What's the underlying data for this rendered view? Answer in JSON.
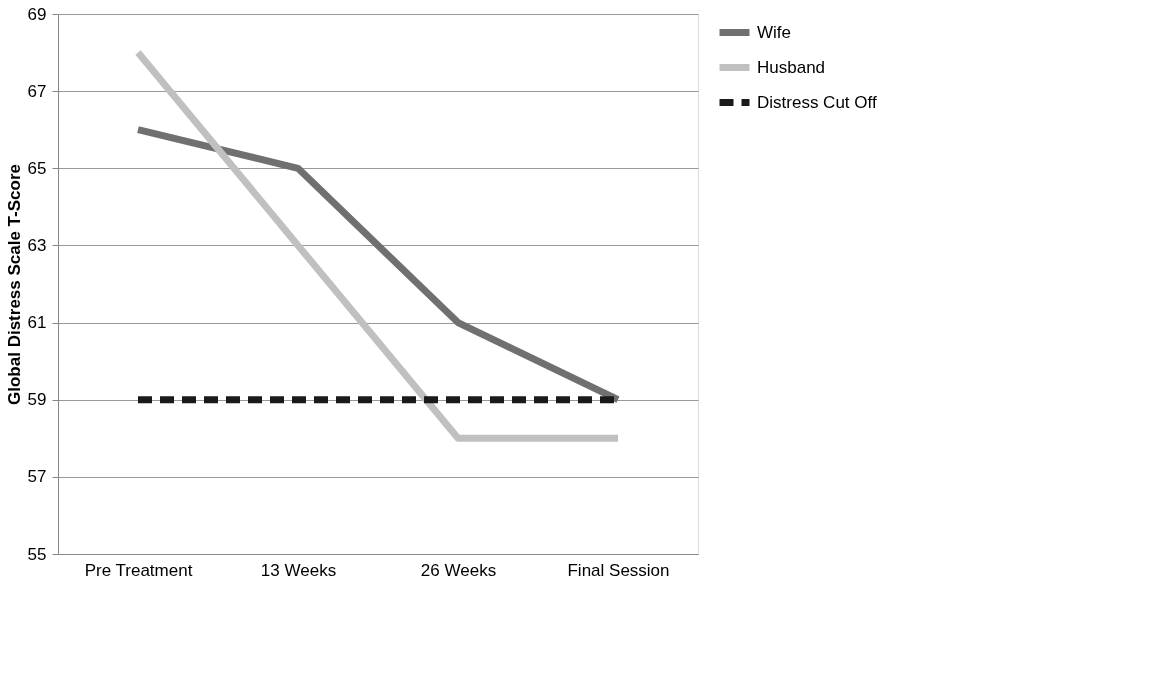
{
  "chart_data": {
    "type": "line",
    "ylabel": "Global Distress Scale  T-Score",
    "categories": [
      "Pre Treatment",
      "13 Weeks",
      "26 Weeks",
      "Final Session"
    ],
    "series": [
      {
        "name": "Wife",
        "color": "#707070",
        "values": [
          66,
          65,
          61,
          59
        ]
      },
      {
        "name": "Husband",
        "color": "#c0c0c0",
        "values": [
          68,
          63,
          58,
          58
        ]
      },
      {
        "name": "Distress Cut Off",
        "color": "#1a1a1a",
        "values": [
          59,
          59,
          59,
          59
        ],
        "line_style": "dashed"
      }
    ],
    "ylim": [
      55,
      69
    ],
    "yticks": [
      55,
      57,
      59,
      61,
      63,
      65,
      67,
      69
    ],
    "grid": "y",
    "legend": "right",
    "marker": "none",
    "line_style": "solid"
  }
}
